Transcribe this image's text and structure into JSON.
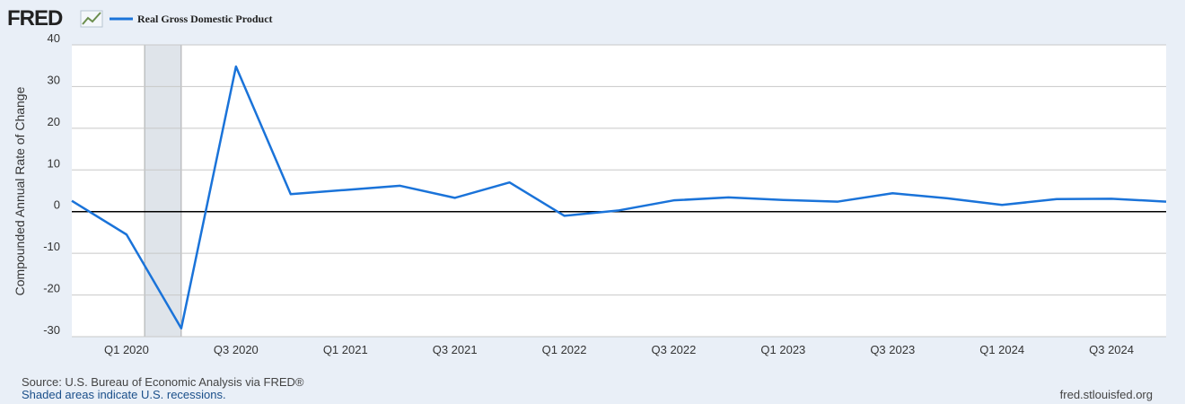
{
  "logo": "FRED",
  "chart_data": {
    "type": "line",
    "ylabel": "Compounded Annual Rate of Change",
    "categories": [
      null,
      "Q1 2020",
      null,
      "Q3 2020",
      null,
      "Q1 2021",
      null,
      "Q3 2021",
      null,
      "Q1 2022",
      null,
      "Q3 2022",
      null,
      "Q1 2023",
      null,
      "Q3 2023",
      null,
      "Q1 2024",
      null,
      "Q3 2024",
      null
    ],
    "series": [
      {
        "name": "Real Gross Domestic Product",
        "color": "#1a73d9",
        "values": [
          2.6,
          -5.5,
          -28.0,
          34.8,
          4.2,
          5.2,
          6.2,
          3.3,
          7.0,
          -1.0,
          0.3,
          2.7,
          3.4,
          2.8,
          2.4,
          4.4,
          3.2,
          1.6,
          3.0,
          3.1,
          2.4
        ]
      }
    ],
    "ylim": [
      -30,
      40
    ],
    "yticks": [
      -30,
      -20,
      -10,
      0,
      10,
      20,
      30,
      40
    ],
    "grid": true,
    "recession_shading": [
      1.33,
      2.0
    ]
  },
  "footer": {
    "source": "Source: U.S. Bureau of Economic Analysis via FRED®",
    "note": "Shaded areas indicate U.S. recessions.",
    "site": "fred.stlouisfed.org"
  }
}
